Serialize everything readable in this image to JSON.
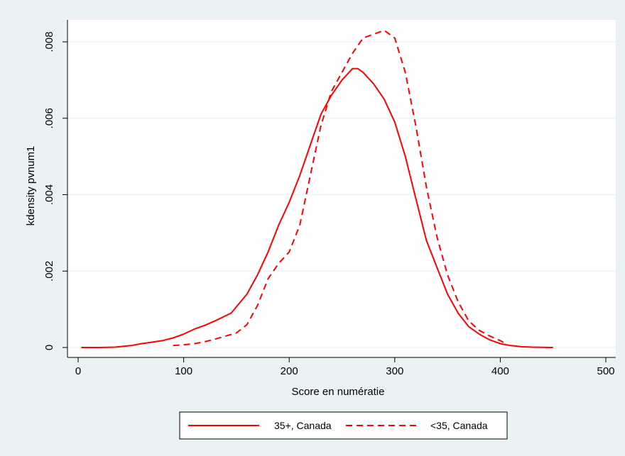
{
  "chart_data": {
    "type": "line",
    "xlabel": "Score en numératie",
    "ylabel": "kdensity pvnum1",
    "xlim": [
      0,
      500
    ],
    "ylim": [
      0,
      0.0085
    ],
    "x_ticks": [
      0,
      100,
      200,
      300,
      400,
      500
    ],
    "x_tick_labels": [
      "0",
      "100",
      "200",
      "300",
      "400",
      "500"
    ],
    "y_ticks": [
      0,
      0.002,
      0.004,
      0.006,
      0.008
    ],
    "y_tick_labels": [
      "0",
      ".002",
      ".004",
      ".006",
      ".008"
    ],
    "grid": "horizontal",
    "legend_placement": "bottom",
    "colors": {
      "line": "#ff0000",
      "plot_background": "#ffffff",
      "outer_background": "#eaf2f3",
      "grid": "#eaf2f3"
    },
    "series": [
      {
        "name": "35+, Canada",
        "style": "solid",
        "x": [
          3,
          20,
          35,
          50,
          60,
          70,
          80,
          90,
          100,
          110,
          120,
          130,
          145,
          160,
          170,
          180,
          190,
          200,
          210,
          220,
          230,
          240,
          250,
          260,
          265,
          270,
          280,
          290,
          300,
          310,
          320,
          330,
          340,
          350,
          360,
          370,
          380,
          390,
          400,
          410,
          420,
          430,
          450
        ],
        "y": [
          0,
          0,
          1e-05,
          5e-05,
          0.0001,
          0.00014,
          0.00018,
          0.00025,
          0.00035,
          0.00048,
          0.00058,
          0.0007,
          0.0009,
          0.0014,
          0.0019,
          0.0025,
          0.0032,
          0.0038,
          0.0045,
          0.0053,
          0.0061,
          0.0066,
          0.007,
          0.0073,
          0.0073,
          0.0072,
          0.0069,
          0.0065,
          0.0059,
          0.005,
          0.0039,
          0.0028,
          0.0021,
          0.0014,
          0.0009,
          0.00055,
          0.00035,
          0.0002,
          0.0001,
          5e-05,
          2e-05,
          1e-05,
          0
        ]
      },
      {
        "name": "<35, Canada",
        "style": "dashed",
        "x": [
          90,
          100,
          110,
          120,
          130,
          140,
          150,
          160,
          170,
          180,
          190,
          200,
          210,
          220,
          230,
          240,
          250,
          260,
          270,
          280,
          290,
          300,
          310,
          320,
          330,
          340,
          350,
          360,
          370,
          380,
          390,
          400,
          405
        ],
        "y": [
          5e-05,
          7e-05,
          0.0001,
          0.00015,
          0.00022,
          0.0003,
          0.00038,
          0.0006,
          0.0011,
          0.0018,
          0.0022,
          0.0025,
          0.0032,
          0.0045,
          0.0058,
          0.0067,
          0.0072,
          0.0077,
          0.0081,
          0.0082,
          0.0083,
          0.0081,
          0.0072,
          0.0058,
          0.0042,
          0.0029,
          0.0019,
          0.0012,
          0.0007,
          0.00045,
          0.0003,
          0.00018,
          0.0001
        ]
      }
    ]
  }
}
